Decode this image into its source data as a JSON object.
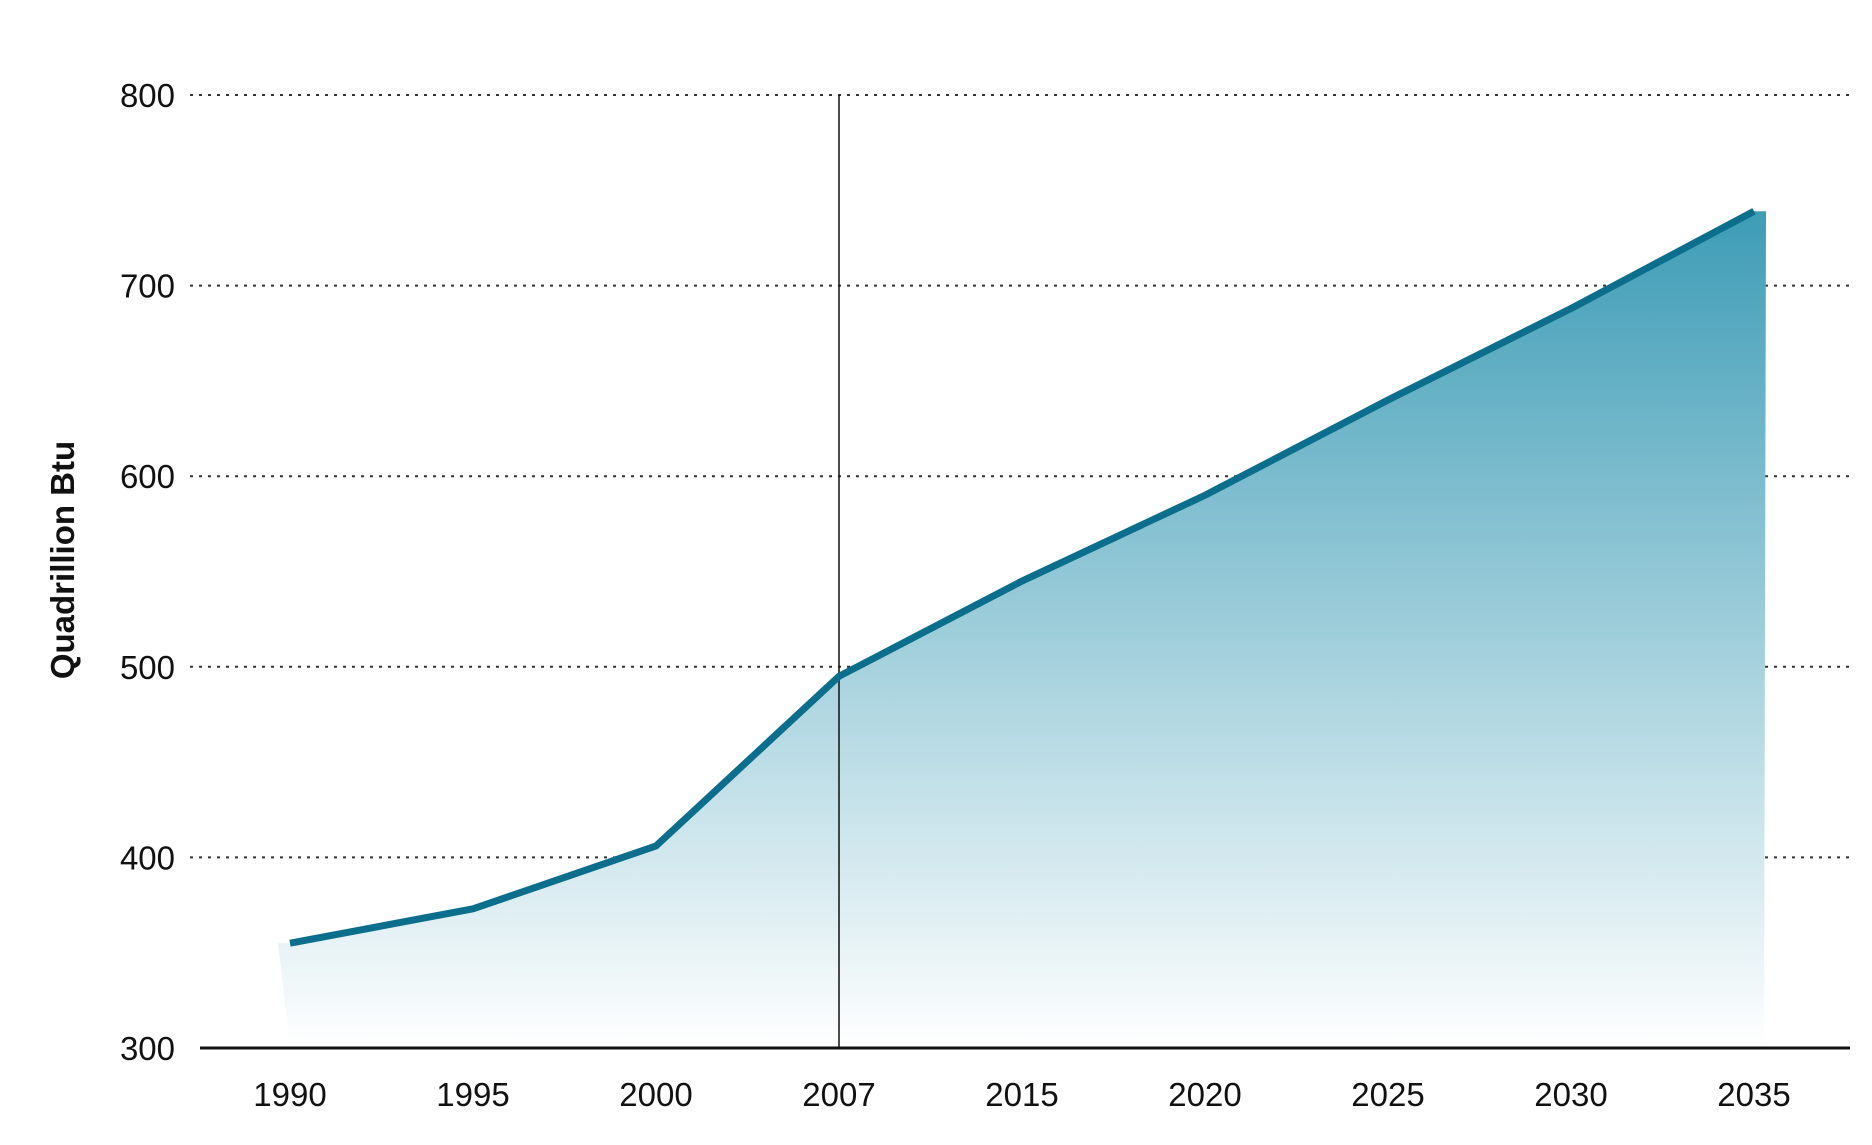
{
  "chart_data": {
    "type": "area",
    "title": "",
    "xlabel": "",
    "ylabel": "Quadrillion Btu",
    "categories": [
      "1990",
      "1995",
      "2000",
      "2007",
      "2015",
      "2020",
      "2025",
      "2030",
      "2035"
    ],
    "ylim": [
      300,
      800
    ],
    "yticks": [
      300,
      400,
      500,
      600,
      700,
      800
    ],
    "grid": "horizontal dotted",
    "series": [
      {
        "values": [
          355,
          373,
          406,
          495,
          545,
          590,
          640,
          688,
          739
        ]
      }
    ],
    "divider_category": "2007",
    "colors": {
      "line": "#0a6e8c",
      "fill_top": "#3d9cb6",
      "fill_bottom": "#ffffff",
      "grid": "#333333",
      "axis": "#111111"
    }
  }
}
